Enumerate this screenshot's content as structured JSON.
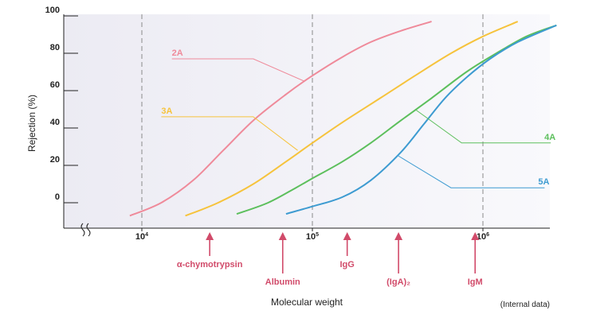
{
  "chart_data": {
    "type": "line",
    "xlabel": "Molecular weight",
    "ylabel": "Rejection (%)",
    "note": "(Internal data)",
    "x_scale": "log",
    "xlim": [
      6000,
      3000000
    ],
    "ylim": [
      -10,
      100
    ],
    "y_ticks": [
      {
        "value": 100,
        "label": "100"
      },
      {
        "value": 80,
        "label": "80"
      },
      {
        "value": 60,
        "label": "60"
      },
      {
        "value": 40,
        "label": "40"
      },
      {
        "value": 20,
        "label": "20"
      },
      {
        "value": 0,
        "label": "0"
      }
    ],
    "x_ticks": [
      {
        "value": 10000,
        "base": "10",
        "exp": "4"
      },
      {
        "value": 100000,
        "base": "10",
        "exp": "5"
      },
      {
        "value": 1000000,
        "base": "10",
        "exp": "6"
      }
    ],
    "gridlines_x": [
      10000,
      100000,
      1000000
    ],
    "series": [
      {
        "name": "2A",
        "color": "#ef8a9a",
        "points": [
          [
            8500,
            -7
          ],
          [
            13000,
            0
          ],
          [
            20000,
            12
          ],
          [
            30000,
            28
          ],
          [
            45000,
            44
          ],
          [
            70000,
            58
          ],
          [
            100000,
            68
          ],
          [
            150000,
            78
          ],
          [
            220000,
            86
          ],
          [
            330000,
            92
          ],
          [
            500000,
            97
          ]
        ]
      },
      {
        "name": "3A",
        "color": "#f6c33c",
        "points": [
          [
            18000,
            -7
          ],
          [
            28000,
            0
          ],
          [
            45000,
            10
          ],
          [
            70000,
            22
          ],
          [
            100000,
            32
          ],
          [
            150000,
            43
          ],
          [
            250000,
            56
          ],
          [
            400000,
            68
          ],
          [
            650000,
            80
          ],
          [
            1000000,
            89
          ],
          [
            1600000,
            97
          ]
        ]
      },
      {
        "name": "4A",
        "color": "#5cbf5c",
        "points": [
          [
            36000,
            -6
          ],
          [
            55000,
            0
          ],
          [
            80000,
            8
          ],
          [
            100000,
            13
          ],
          [
            150000,
            22
          ],
          [
            220000,
            32
          ],
          [
            330000,
            44
          ],
          [
            500000,
            56
          ],
          [
            800000,
            70
          ],
          [
            1200000,
            80
          ],
          [
            1800000,
            89
          ],
          [
            2700000,
            95
          ]
        ]
      },
      {
        "name": "5A",
        "color": "#3d9bd1",
        "points": [
          [
            70000,
            -6
          ],
          [
            100000,
            -2
          ],
          [
            150000,
            3
          ],
          [
            220000,
            12
          ],
          [
            330000,
            27
          ],
          [
            450000,
            42
          ],
          [
            600000,
            56
          ],
          [
            800000,
            67
          ],
          [
            1100000,
            77
          ],
          [
            1600000,
            86
          ],
          [
            2700000,
            95
          ]
        ]
      }
    ],
    "series_labels": [
      {
        "series": "2A",
        "text": "2A",
        "label_x": 15000,
        "label_y": 77,
        "elbow_x": 45000,
        "target_x": 90000,
        "target_y": 65
      },
      {
        "series": "3A",
        "text": "3A",
        "label_x": 13000,
        "label_y": 46,
        "elbow_x": 45000,
        "target_x": 82000,
        "target_y": 28
      },
      {
        "series": "4A",
        "text": "4A",
        "label_x": 2500000,
        "label_y": 32,
        "elbow_x": 750000,
        "target_x": 400000,
        "target_y": 50
      },
      {
        "series": "5A",
        "text": "5A",
        "label_x": 2300000,
        "label_y": 8,
        "elbow_x": 650000,
        "target_x": 320000,
        "target_y": 25
      }
    ],
    "markers": [
      {
        "label": "α-chymotrypsin",
        "x": 25000
      },
      {
        "label": "Albumin",
        "x": 67000
      },
      {
        "label": "IgG",
        "x": 160000
      },
      {
        "label": "(IgA)₂",
        "x": 320000
      },
      {
        "label": "IgM",
        "x": 900000
      }
    ]
  }
}
